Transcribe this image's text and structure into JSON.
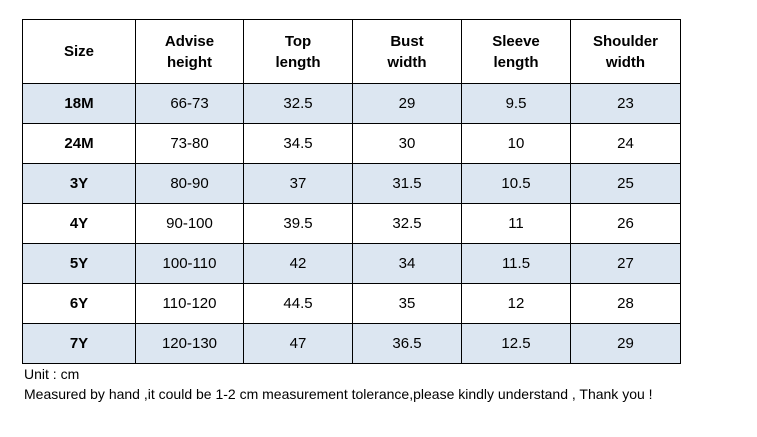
{
  "table": {
    "header": [
      [
        "Size"
      ],
      [
        "Advise",
        "height"
      ],
      [
        "Top",
        "length"
      ],
      [
        "Bust",
        "width"
      ],
      [
        "Sleeve",
        "length"
      ],
      [
        "Shoulder",
        "width"
      ]
    ],
    "rows": [
      [
        "18M",
        "66-73",
        "32.5",
        "29",
        "9.5",
        "23"
      ],
      [
        "24M",
        "73-80",
        "34.5",
        "30",
        "10",
        "24"
      ],
      [
        "3Y",
        "80-90",
        "37",
        "31.5",
        "10.5",
        "25"
      ],
      [
        "4Y",
        "90-100",
        "39.5",
        "32.5",
        "11",
        "26"
      ],
      [
        "5Y",
        "100-110",
        "42",
        "34",
        "11.5",
        "27"
      ],
      [
        "6Y",
        "110-120",
        "44.5",
        "35",
        "12",
        "28"
      ],
      [
        "7Y",
        "120-130",
        "47",
        "36.5",
        "12.5",
        "29"
      ]
    ]
  },
  "notes": [
    "Unit : cm",
    "Measured by hand ,it could be 1-2 cm measurement tolerance,please kindly understand , Thank you !"
  ]
}
